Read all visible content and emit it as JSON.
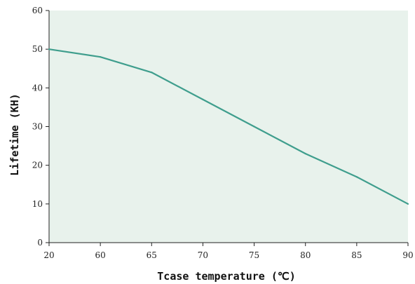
{
  "chart_data": {
    "type": "line",
    "title": "",
    "xlabel": "Tcase temperature (℃)",
    "ylabel": "Lifetime (KH)",
    "categories": [
      "20",
      "60",
      "65",
      "70",
      "75",
      "80",
      "85",
      "90"
    ],
    "series": [
      {
        "values": [
          50,
          48,
          44,
          37,
          30,
          23,
          17,
          10
        ]
      }
    ],
    "ylim": [
      0,
      60
    ],
    "yticks": [
      0,
      10,
      20,
      30,
      40,
      50,
      60
    ],
    "grid": false,
    "plot_background": "#e8f2ec",
    "line_color": "#3f9e8d",
    "axis_color": "#222222"
  }
}
